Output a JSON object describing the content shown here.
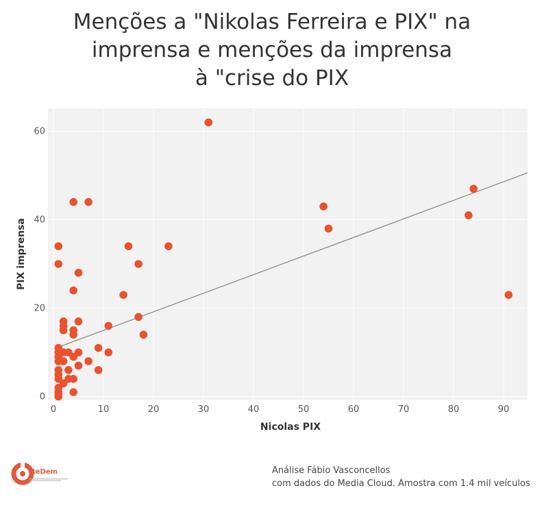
{
  "title": {
    "line1": "Menções a \"Nikolas Ferreira e PIX\" na",
    "line2": "imprensa e menções da imprensa",
    "line3": "à \"crise do PIX"
  },
  "logo": {
    "name": "ReDem"
  },
  "credit": {
    "line1": "Análise Fábio Vasconcellos",
    "line2": "com dados do Media Cloud. Amostra com 1.4 mil veículos"
  },
  "colors": {
    "points": "#e8532f",
    "trend": "#8c8c8c",
    "panel": "#f2f2f2",
    "grid": "#ffffff"
  },
  "chart_data": {
    "type": "scatter",
    "xlabel": "Nicolas PIX",
    "ylabel": "PIX imprensa",
    "xlim": [
      -1,
      95
    ],
    "ylim": [
      -0.5,
      65
    ],
    "xticks": [
      0,
      10,
      20,
      30,
      40,
      50,
      60,
      70,
      80,
      90
    ],
    "yticks": [
      0,
      20,
      40,
      60
    ],
    "grid": true,
    "trendline": {
      "x": [
        1,
        95
      ],
      "y": [
        11.2,
        50.6
      ]
    },
    "points": [
      [
        31,
        62
      ],
      [
        84,
        47
      ],
      [
        83,
        41
      ],
      [
        54,
        43
      ],
      [
        55,
        38
      ],
      [
        91,
        23
      ],
      [
        4,
        44
      ],
      [
        7,
        44
      ],
      [
        1,
        34
      ],
      [
        15,
        34
      ],
      [
        23,
        34
      ],
      [
        1,
        30
      ],
      [
        17,
        30
      ],
      [
        5,
        28
      ],
      [
        4,
        24
      ],
      [
        14,
        23
      ],
      [
        17,
        18
      ],
      [
        18,
        14
      ],
      [
        11,
        16
      ],
      [
        2,
        17
      ],
      [
        5,
        17
      ],
      [
        2,
        16
      ],
      [
        2,
        15
      ],
      [
        4,
        15
      ],
      [
        4,
        14
      ],
      [
        1,
        11
      ],
      [
        9,
        11
      ],
      [
        1,
        10
      ],
      [
        2,
        10
      ],
      [
        3,
        10
      ],
      [
        5,
        10
      ],
      [
        11,
        10
      ],
      [
        4,
        9
      ],
      [
        1,
        9
      ],
      [
        1,
        8
      ],
      [
        2,
        8
      ],
      [
        7,
        8
      ],
      [
        5,
        7
      ],
      [
        3,
        6
      ],
      [
        9,
        6
      ],
      [
        1,
        6
      ],
      [
        1,
        5
      ],
      [
        1,
        4
      ],
      [
        3,
        4
      ],
      [
        4,
        4
      ],
      [
        2,
        3
      ],
      [
        1,
        2
      ],
      [
        1,
        1
      ],
      [
        4,
        1
      ],
      [
        1,
        0.3
      ],
      [
        1,
        0
      ]
    ]
  }
}
